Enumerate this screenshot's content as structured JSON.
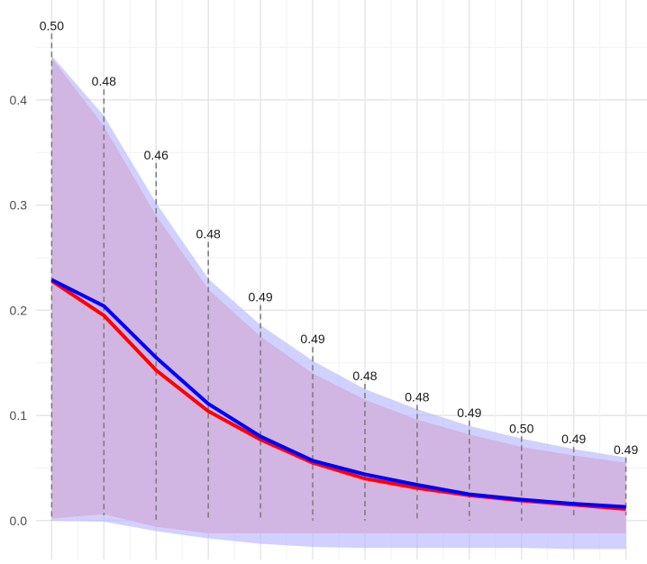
{
  "chart_data": {
    "type": "line",
    "title": "",
    "xlabel": "",
    "ylabel": "",
    "x": [
      1,
      2,
      3,
      4,
      5,
      6,
      7,
      8,
      9,
      10,
      11,
      12
    ],
    "xlim": [
      0.7,
      12.3
    ],
    "ylim": [
      -0.037,
      0.495
    ],
    "yticks": [
      0.0,
      0.1,
      0.2,
      0.3,
      0.4
    ],
    "ytick_labels": [
      "0.0",
      "0.1",
      "0.2",
      "0.3",
      "0.4"
    ],
    "grid": true,
    "legend": "none",
    "series": [
      {
        "color": "#ff0000",
        "values": [
          0.228,
          0.195,
          0.143,
          0.104,
          0.077,
          0.055,
          0.04,
          0.031,
          0.024,
          0.019,
          0.015,
          0.011
        ],
        "band_low": [
          0.002,
          0.006,
          -0.006,
          -0.012,
          -0.012,
          -0.012,
          -0.012,
          -0.012,
          -0.012,
          -0.012,
          -0.012,
          -0.012
        ],
        "band_high": [
          0.44,
          0.375,
          0.29,
          0.22,
          0.175,
          0.14,
          0.115,
          0.096,
          0.082,
          0.07,
          0.062,
          0.055
        ],
        "band_color": "#ffb6b6"
      },
      {
        "color": "#0000ff",
        "values": [
          0.229,
          0.204,
          0.155,
          0.111,
          0.08,
          0.057,
          0.044,
          0.034,
          0.025,
          0.02,
          0.016,
          0.013
        ],
        "band_low": [
          0.0,
          -0.001,
          -0.01,
          -0.017,
          -0.022,
          -0.025,
          -0.026,
          -0.026,
          -0.026,
          -0.026,
          -0.027,
          -0.027
        ],
        "band_high": [
          0.442,
          0.385,
          0.302,
          0.23,
          0.186,
          0.152,
          0.125,
          0.106,
          0.09,
          0.078,
          0.068,
          0.06
        ],
        "band_color": "#b4b4ff"
      }
    ],
    "annotations": {
      "values": [
        "0.50",
        "0.48",
        "0.46",
        "0.48",
        "0.49",
        "0.49",
        "0.48",
        "0.48",
        "0.49",
        "0.50",
        "0.49",
        "0.49"
      ],
      "line_top": [
        0.463,
        0.41,
        0.34,
        0.265,
        0.205,
        0.165,
        0.13,
        0.11,
        0.095,
        0.08,
        0.07,
        0.06
      ],
      "line_bottom": [
        0.0,
        0.005,
        0.0,
        0.0,
        0.0,
        0.0,
        0.0,
        0.0,
        0.0,
        0.0,
        0.005,
        0.005
      ]
    }
  }
}
